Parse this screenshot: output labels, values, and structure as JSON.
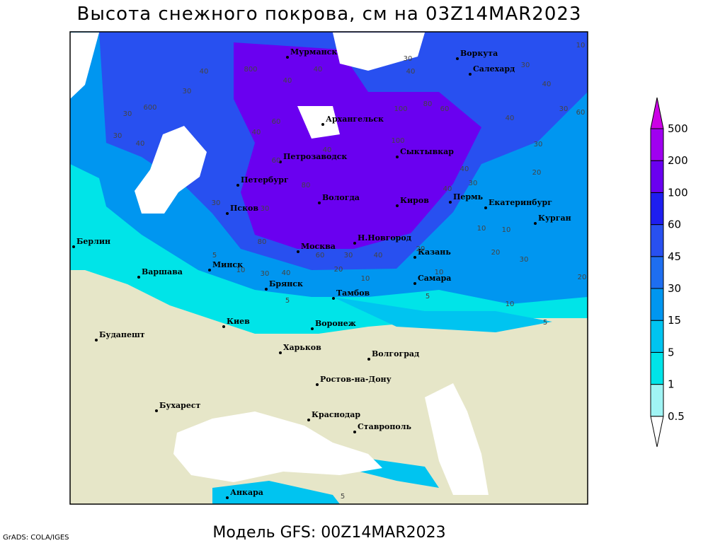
{
  "header": {
    "title": "Высота снежного покрова, см на 03Z14MAR2023"
  },
  "footer": {
    "model": "Модель GFS: 00Z14MAR2023",
    "credit": "GrADS: COLA/IGES"
  },
  "legend": {
    "ticks": [
      0.5,
      1,
      5,
      15,
      30,
      45,
      60,
      100,
      200,
      500
    ],
    "colors": [
      "#ffffff",
      "#a0f4f4",
      "#00e4e8",
      "#00c4f0",
      "#0096f0",
      "#1e6ef0",
      "#2850f0",
      "#1e1ef0",
      "#6a00f0",
      "#a000f0",
      "#cc00e6"
    ]
  },
  "map": {
    "land_color": "#e6e6c8",
    "water_color": "#ffffff",
    "cities": [
      "Мурманск",
      "Воркута",
      "Салехард",
      "Архангельск",
      "Сыктывкар",
      "Петрозаводск",
      "Петербург",
      "Вологда",
      "Киров",
      "Пермь",
      "Екатеринбург",
      "Курган",
      "Псков",
      "Берлин",
      "Н.Новгород",
      "Москва",
      "Казань",
      "Минск",
      "Варшава",
      "Брянск",
      "Самара",
      "Тамбов",
      "Киев",
      "Воронеж",
      "Будапешт",
      "Харьков",
      "Волгоград",
      "Ростов-на-Дону",
      "Бухарест",
      "Краснодар",
      "Ставрополь",
      "Анкара"
    ],
    "contour_labels": [
      40,
      800,
      40,
      40,
      30,
      30,
      600,
      40,
      30,
      60,
      40,
      100,
      80,
      60,
      40,
      30,
      10,
      30,
      40,
      30,
      60,
      40,
      30,
      20,
      40,
      30,
      40,
      80,
      60,
      100,
      40,
      30,
      30,
      80,
      30,
      40,
      60,
      30,
      20,
      10,
      40,
      20,
      10,
      5,
      10,
      5,
      5,
      10,
      5,
      20,
      30,
      20,
      10,
      10,
      5
    ]
  }
}
